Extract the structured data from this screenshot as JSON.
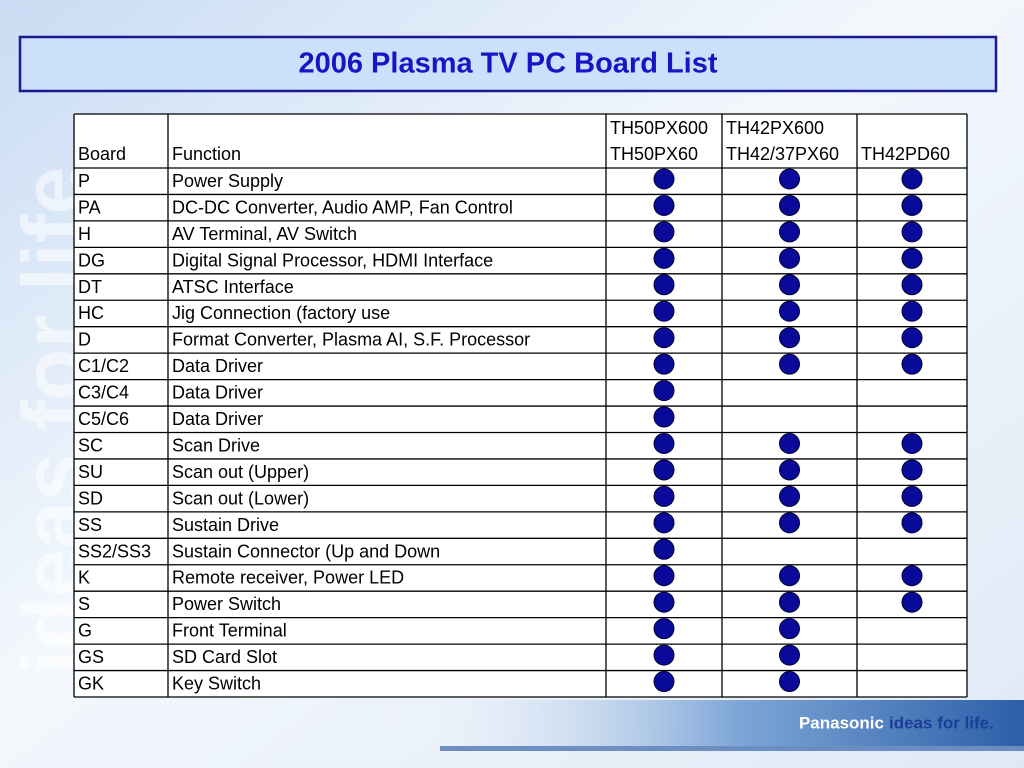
{
  "title": "2006 Plasma TV PC Board List",
  "watermark": "ideas for life",
  "footer": {
    "brand": "Panasonic",
    "tagline": "ideas for life."
  },
  "table": {
    "headers": [
      [
        "Board"
      ],
      [
        "Function"
      ],
      [
        "TH50PX600",
        "TH50PX60"
      ],
      [
        "TH42PX600",
        "TH42/37PX60"
      ],
      [
        "TH42PD60"
      ]
    ],
    "rows": [
      [
        "P",
        "Power Supply",
        true,
        true,
        true
      ],
      [
        "PA",
        "DC-DC Converter, Audio AMP, Fan Control",
        true,
        true,
        true
      ],
      [
        "H",
        "AV Terminal, AV Switch",
        true,
        true,
        true
      ],
      [
        "DG",
        "Digital Signal Processor, HDMI Interface",
        true,
        true,
        true
      ],
      [
        "DT",
        "ATSC Interface",
        true,
        true,
        true
      ],
      [
        "HC",
        "Jig Connection (factory use",
        true,
        true,
        true
      ],
      [
        "D",
        "Format Converter, Plasma AI, S.F. Processor",
        true,
        true,
        true
      ],
      [
        "C1/C2",
        "Data Driver",
        true,
        true,
        true
      ],
      [
        "C3/C4",
        "Data Driver",
        true,
        false,
        false
      ],
      [
        "C5/C6",
        "Data Driver",
        true,
        false,
        false
      ],
      [
        "SC",
        "Scan Drive",
        true,
        true,
        true
      ],
      [
        "SU",
        "Scan out (Upper)",
        true,
        true,
        true
      ],
      [
        "SD",
        "Scan out (Lower)",
        true,
        true,
        true
      ],
      [
        "SS",
        "Sustain Drive",
        true,
        true,
        true
      ],
      [
        "SS2/SS3",
        "Sustain Connector (Up and Down",
        true,
        false,
        false
      ],
      [
        "K",
        "Remote receiver, Power LED",
        true,
        true,
        true
      ],
      [
        "S",
        "Power Switch",
        true,
        true,
        true
      ],
      [
        "G",
        "Front Terminal",
        true,
        true,
        false
      ],
      [
        "GS",
        "SD Card Slot",
        true,
        true,
        false
      ],
      [
        "GK",
        "Key Switch",
        true,
        true,
        false
      ]
    ]
  }
}
